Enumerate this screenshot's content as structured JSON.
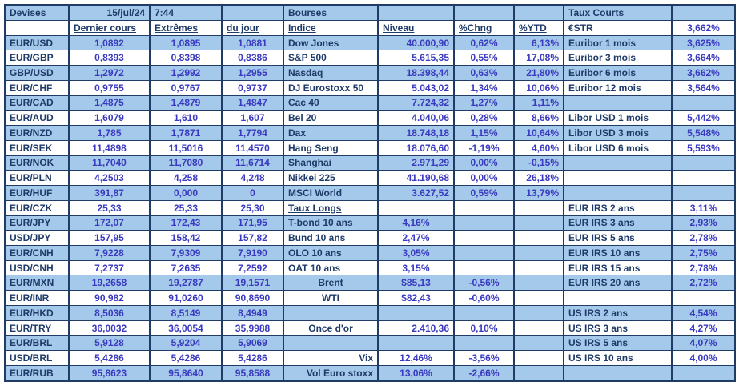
{
  "meta": {
    "date": "15/jul/24",
    "time": "7:44"
  },
  "colors": {
    "row_blue": "#A4C9EA",
    "row_white": "#FFFFFF",
    "grid_border": "#1F3B66",
    "label_text": "#1E3A68",
    "value_text": "#3A3AC0"
  },
  "devises": {
    "title": "Devises",
    "headers": [
      "Dernier cours",
      "Extrêmes",
      "du jour"
    ],
    "rows": [
      {
        "pair": "EUR/USD",
        "dernier": "1,0892",
        "extremes": "1,0895",
        "du_jour": "1,0881"
      },
      {
        "pair": "EUR/GBP",
        "dernier": "0,8393",
        "extremes": "0,8398",
        "du_jour": "0,8386"
      },
      {
        "pair": "GBP/USD",
        "dernier": "1,2972",
        "extremes": "1,2992",
        "du_jour": "1,2955"
      },
      {
        "pair": "EUR/CHF",
        "dernier": "0,9755",
        "extremes": "0,9767",
        "du_jour": "0,9737"
      },
      {
        "pair": "EUR/CAD",
        "dernier": "1,4875",
        "extremes": "1,4879",
        "du_jour": "1,4847"
      },
      {
        "pair": "EUR/AUD",
        "dernier": "1,6079",
        "extremes": "1,610",
        "du_jour": "1,607"
      },
      {
        "pair": "EUR/NZD",
        "dernier": "1,785",
        "extremes": "1,7871",
        "du_jour": "1,7794"
      },
      {
        "pair": "EUR/SEK",
        "dernier": "11,4898",
        "extremes": "11,5016",
        "du_jour": "11,4570"
      },
      {
        "pair": "EUR/NOK",
        "dernier": "11,7040",
        "extremes": "11,7080",
        "du_jour": "11,6714"
      },
      {
        "pair": "EUR/PLN",
        "dernier": "4,2503",
        "extremes": "4,258",
        "du_jour": "4,248"
      },
      {
        "pair": "EUR/HUF",
        "dernier": "391,87",
        "extremes": "0,000",
        "du_jour": "0"
      },
      {
        "pair": "EUR/CZK",
        "dernier": "25,33",
        "extremes": "25,33",
        "du_jour": "25,30"
      },
      {
        "pair": "EUR/JPY",
        "dernier": "172,07",
        "extremes": "172,43",
        "du_jour": "171,95"
      },
      {
        "pair": "USD/JPY",
        "dernier": "157,95",
        "extremes": "158,42",
        "du_jour": "157,82"
      },
      {
        "pair": "EUR/CNH",
        "dernier": "7,9228",
        "extremes": "7,9309",
        "du_jour": "7,9190"
      },
      {
        "pair": "USD/CNH",
        "dernier": "7,2737",
        "extremes": "7,2635",
        "du_jour": "7,2592"
      },
      {
        "pair": "EUR/MXN",
        "dernier": "19,2658",
        "extremes": "19,2787",
        "du_jour": "19,1571"
      },
      {
        "pair": "EUR/INR",
        "dernier": "90,982",
        "extremes": "91,0260",
        "du_jour": "90,8690"
      },
      {
        "pair": "EUR/HKD",
        "dernier": "8,5036",
        "extremes": "8,5149",
        "du_jour": "8,4949"
      },
      {
        "pair": "EUR/TRY",
        "dernier": "36,0032",
        "extremes": "36,0054",
        "du_jour": "35,9988"
      },
      {
        "pair": "EUR/BRL",
        "dernier": "5,9128",
        "extremes": "5,9204",
        "du_jour": "5,9069"
      },
      {
        "pair": "USD/BRL",
        "dernier": "5,4286",
        "extremes": "5,4286",
        "du_jour": "5,4286"
      },
      {
        "pair": "EUR/RUB",
        "dernier": "95,8623",
        "extremes": "95,8640",
        "du_jour": "95,8588"
      }
    ]
  },
  "bourses": {
    "title": "Bourses",
    "headers": [
      "Indice",
      "Niveau",
      "%Chng",
      "%YTD"
    ],
    "rows": [
      {
        "label": "Dow Jones",
        "niveau": "40.000,90",
        "chng": "0,62%",
        "ytd": "6,13%",
        "label_align": "left",
        "niveau_align": "right"
      },
      {
        "label": "S&P 500",
        "niveau": "5.615,35",
        "chng": "0,55%",
        "ytd": "17,08%",
        "label_align": "left",
        "niveau_align": "right"
      },
      {
        "label": "Nasdaq",
        "niveau": "18.398,44",
        "chng": "0,63%",
        "ytd": "21,80%",
        "label_align": "left",
        "niveau_align": "right"
      },
      {
        "label": "DJ Eurostoxx 50",
        "niveau": "5.043,02",
        "chng": "1,34%",
        "ytd": "10,06%",
        "label_align": "left",
        "niveau_align": "right"
      },
      {
        "label": "Cac 40",
        "niveau": "7.724,32",
        "chng": "1,27%",
        "ytd": "1,11%",
        "label_align": "left",
        "niveau_align": "right"
      },
      {
        "label": "Bel 20",
        "niveau": "4.040,06",
        "chng": "0,28%",
        "ytd": "8,66%",
        "label_align": "left",
        "niveau_align": "right"
      },
      {
        "label": "Dax",
        "niveau": "18.748,18",
        "chng": "1,15%",
        "ytd": "10,64%",
        "label_align": "left",
        "niveau_align": "right"
      },
      {
        "label": "Hang Seng",
        "niveau": "18.076,60",
        "chng": "-1,19%",
        "ytd": "4,60%",
        "label_align": "left",
        "niveau_align": "right"
      },
      {
        "label": "Shanghai",
        "niveau": "2.971,29",
        "chng": "0,00%",
        "ytd": "-0,15%",
        "label_align": "left",
        "niveau_align": "right"
      },
      {
        "label": "Nikkei 225",
        "niveau": "41.190,68",
        "chng": "0,00%",
        "ytd": "26,18%",
        "label_align": "left",
        "niveau_align": "right"
      },
      {
        "label": "MSCI World",
        "niveau": "3.627,52",
        "chng": "0,59%",
        "ytd": "13,79%",
        "label_align": "left",
        "niveau_align": "right"
      },
      {
        "label": "Taux Longs",
        "niveau": "",
        "chng": "",
        "ytd": "",
        "label_align": "left",
        "underline": true
      },
      {
        "label": "T-bond 10 ans",
        "niveau": "4,16%",
        "chng": "",
        "ytd": "",
        "label_align": "left",
        "niveau_align": "center"
      },
      {
        "label": "Bund 10 ans",
        "niveau": "2,47%",
        "chng": "",
        "ytd": "",
        "label_align": "left",
        "niveau_align": "center"
      },
      {
        "label": "OLO 10 ans",
        "niveau": "3,05%",
        "chng": "",
        "ytd": "",
        "label_align": "left",
        "niveau_align": "center"
      },
      {
        "label": "OAT 10 ans",
        "niveau": "3,15%",
        "chng": "",
        "ytd": "",
        "label_align": "left",
        "niveau_align": "center"
      },
      {
        "label": "Brent",
        "niveau": "$85,13",
        "chng": "-0,56%",
        "ytd": "",
        "label_align": "center",
        "niveau_align": "center"
      },
      {
        "label": "WTI",
        "niveau": "$82,43",
        "chng": "-0,60%",
        "ytd": "",
        "label_align": "center",
        "niveau_align": "center"
      },
      {
        "label": "",
        "niveau": "",
        "chng": "",
        "ytd": ""
      },
      {
        "label": "Once d'or",
        "niveau": "2.410,36",
        "chng": "0,10%",
        "ytd": "",
        "label_align": "center",
        "niveau_align": "right"
      },
      {
        "label": "",
        "niveau": "",
        "chng": "",
        "ytd": ""
      },
      {
        "label": "Vix",
        "niveau": "12,46%",
        "chng": "-3,56%",
        "ytd": "",
        "label_align": "right",
        "niveau_align": "center"
      },
      {
        "label": "Vol Euro stoxx",
        "niveau": "13,06%",
        "chng": "-2,66%",
        "ytd": "",
        "label_align": "right",
        "niveau_align": "center"
      }
    ]
  },
  "taux_courts": {
    "title": "Taux Courts",
    "rows": [
      {
        "label": "€STR",
        "value": "3,662%"
      },
      {
        "label": "Euribor 1 mois",
        "value": "3,625%"
      },
      {
        "label": "Euribor 3 mois",
        "value": "3,664%"
      },
      {
        "label": "Euribor 6 mois",
        "value": "3,662%"
      },
      {
        "label": "Euribor 12 mois",
        "value": "3,564%"
      },
      {
        "label": "",
        "value": ""
      },
      {
        "label": "Libor USD 1 mois",
        "value": "5,442%"
      },
      {
        "label": "Libor USD 3 mois",
        "value": "5,548%"
      },
      {
        "label": "Libor USD 6 mois",
        "value": "5,593%"
      },
      {
        "label": "",
        "value": ""
      },
      {
        "label": "",
        "value": ""
      },
      {
        "label": "",
        "value": ""
      },
      {
        "label": "EUR IRS 2 ans",
        "value": "3,11%"
      },
      {
        "label": "EUR IRS 3 ans",
        "value": "2,93%"
      },
      {
        "label": "EUR IRS 5 ans",
        "value": "2,78%"
      },
      {
        "label": "EUR IRS 10 ans",
        "value": "2,75%"
      },
      {
        "label": "EUR IRS 15 ans",
        "value": "2,78%"
      },
      {
        "label": "EUR IRS 20 ans",
        "value": "2,72%"
      },
      {
        "label": "",
        "value": ""
      },
      {
        "label": "US IRS 2 ans",
        "value": "4,54%"
      },
      {
        "label": "US IRS 3 ans",
        "value": "4,27%"
      },
      {
        "label": "US IRS 5 ans",
        "value": "4,07%"
      },
      {
        "label": "US IRS 10 ans",
        "value": "4,00%"
      },
      {
        "label": "",
        "value": ""
      }
    ]
  }
}
